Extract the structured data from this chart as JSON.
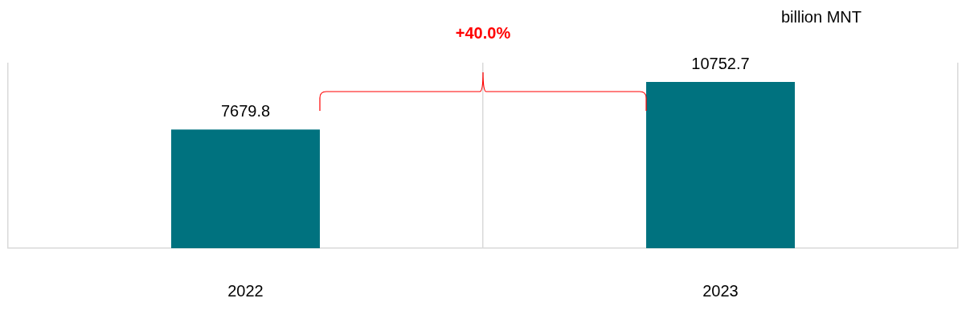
{
  "chart_data": {
    "type": "bar",
    "ylabel": "billion MNT",
    "categories": [
      "2022",
      "2023"
    ],
    "values": [
      7679.8,
      10752.7
    ],
    "color": "#00727f",
    "ylim": [
      0,
      12000
    ],
    "tick_labels": "x",
    "data_labels": true,
    "grid": "x",
    "annotations": [
      "+40.0%"
    ]
  }
}
